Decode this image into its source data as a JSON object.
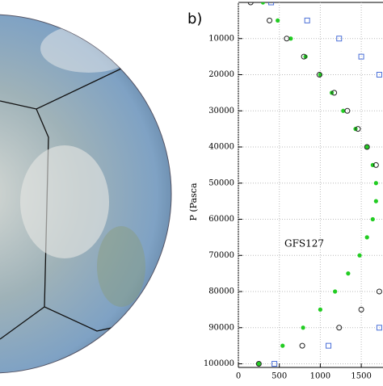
{
  "chart_data": {
    "type": "scatter",
    "title": "b)",
    "y_label": "P (Pasca",
    "annotation": "GFS127",
    "y": [
      0,
      5000,
      10000,
      15000,
      20000,
      25000,
      30000,
      35000,
      40000,
      45000,
      50000,
      55000,
      60000,
      65000,
      70000,
      75000,
      80000,
      85000,
      90000,
      95000,
      100000
    ],
    "series": [
      {
        "color": "#22cc22",
        "marker": "dot",
        "values": [
          300,
          480,
          640,
          820,
          1000,
          1140,
          1280,
          1430,
          1570,
          1640,
          1680,
          1680,
          1640,
          1570,
          1480,
          1340,
          1180,
          1000,
          790,
          540,
          250
        ]
      },
      {
        "color": "#222222",
        "marker": "circle",
        "values": [
          150,
          380,
          590,
          800,
          990,
          1170,
          1330,
          1460,
          1570,
          1680,
          null,
          null,
          null,
          null,
          null,
          null,
          1720,
          1500,
          1230,
          780,
          250
        ]
      },
      {
        "color": "#4a6fd8",
        "marker": "square",
        "values": [
          400,
          840,
          1230,
          1500,
          1720,
          null,
          null,
          null,
          null,
          null,
          null,
          null,
          null,
          null,
          null,
          null,
          null,
          null,
          1720,
          1100,
          440
        ]
      }
    ],
    "xlim": [
      0,
      1770
    ],
    "ylim": [
      0,
      101000
    ],
    "y_inverted": true,
    "xticks": [
      0,
      500,
      1000,
      1500
    ],
    "yticks": [
      10000,
      20000,
      30000,
      40000,
      50000,
      60000,
      70000,
      80000,
      90000,
      100000
    ],
    "grid": true
  }
}
